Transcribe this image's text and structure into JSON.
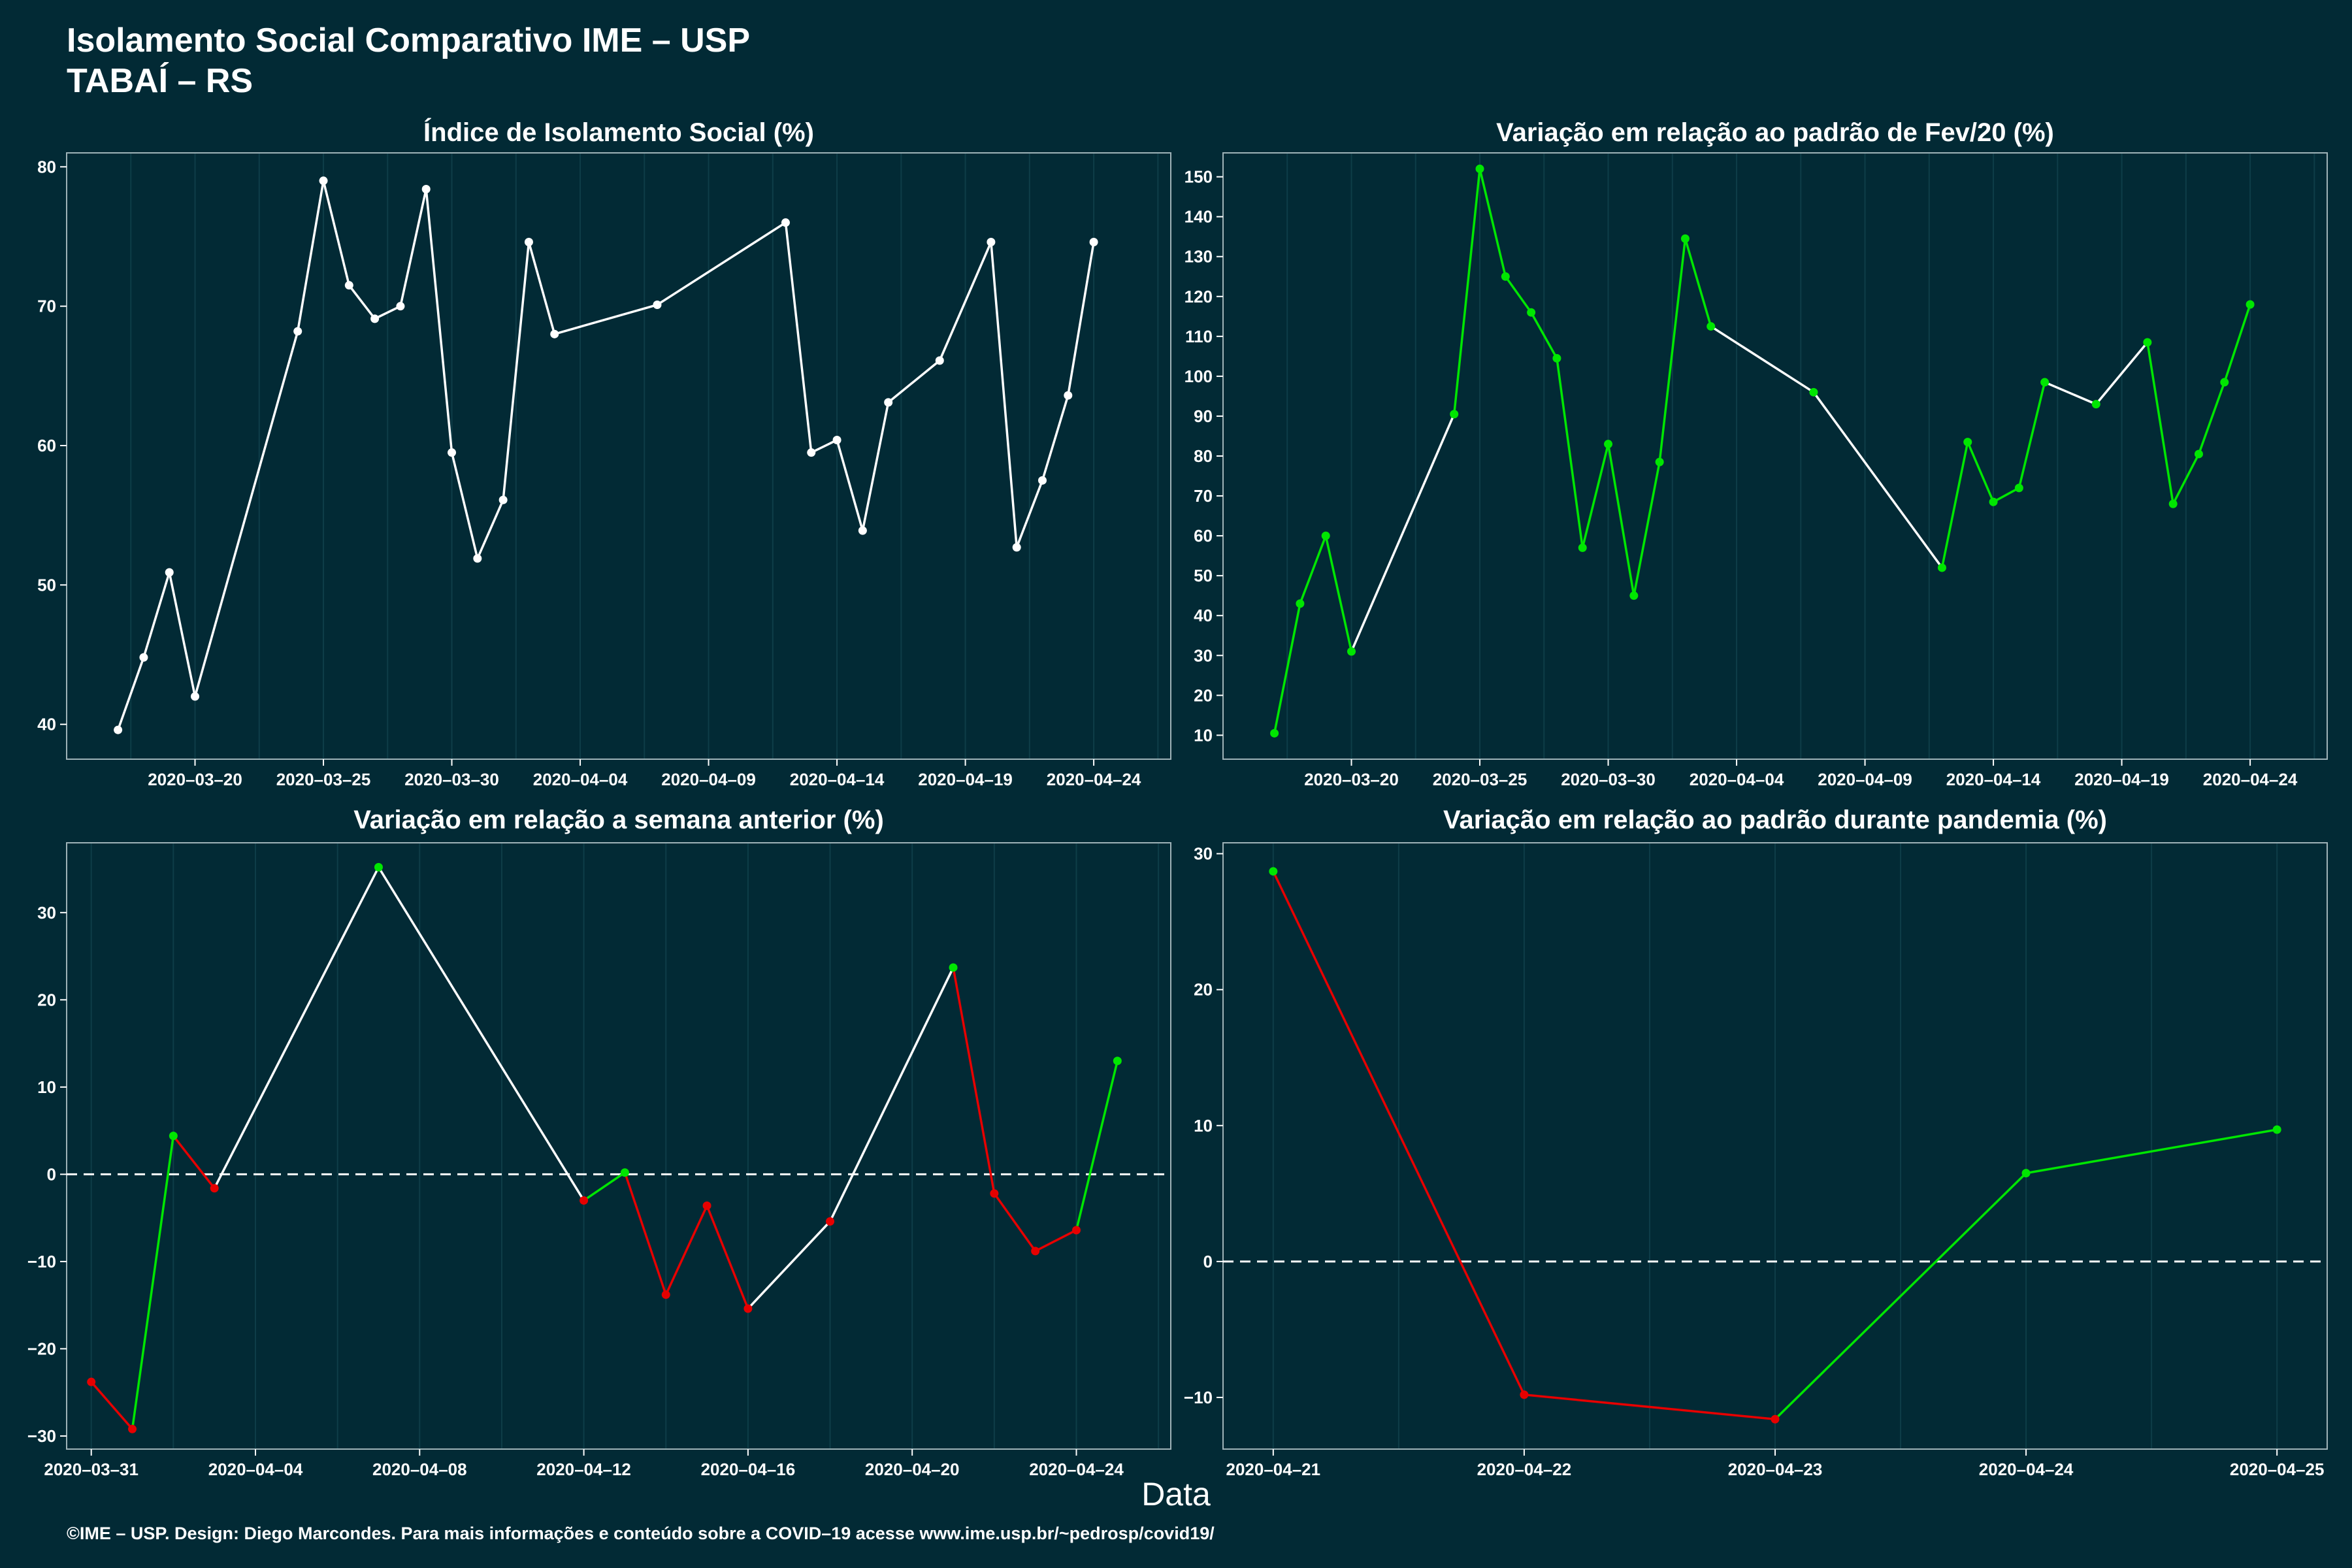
{
  "header": {
    "title_line1": "Isolamento Social Comparativo IME – USP",
    "title_line2": "TABAÍ – RS"
  },
  "x_axis_label": "Data",
  "footer": "©IME – USP. Design: Diego Marcondes. Para mais informações e conteúdo sobre a COVID–19 acesse www.ime.usp.br/~pedrosp/covid19/",
  "colors": {
    "background": "#022a35",
    "panel": "#022a35",
    "line_white": "#ffffff",
    "green": "#00e600",
    "red": "#e60000",
    "grid": "#0e3d48"
  },
  "chart_data": [
    {
      "type": "line",
      "title": "Índice de Isolamento Social (%)",
      "x_type": "date",
      "xlim": [
        "2020-03-15",
        "2020-04-27"
      ],
      "ylim": [
        37.5,
        81
      ],
      "x_ticks": [
        "2020-03-20",
        "2020-03-25",
        "2020-03-30",
        "2020-04-04",
        "2020-04-09",
        "2020-04-14",
        "2020-04-19",
        "2020-04-24"
      ],
      "y_ticks": [
        40,
        50,
        60,
        70,
        80
      ],
      "points": [
        {
          "x": "2020-03-17",
          "y": 39.6,
          "c": "white"
        },
        {
          "x": "2020-03-18",
          "y": 44.8,
          "c": "white"
        },
        {
          "x": "2020-03-19",
          "y": 50.9,
          "c": "white"
        },
        {
          "x": "2020-03-20",
          "y": 42.0,
          "c": "white"
        },
        {
          "x": "2020-03-24",
          "y": 68.2,
          "c": "white"
        },
        {
          "x": "2020-03-25",
          "y": 79.0,
          "c": "white"
        },
        {
          "x": "2020-03-26",
          "y": 71.5,
          "c": "white"
        },
        {
          "x": "2020-03-27",
          "y": 69.1,
          "c": "white"
        },
        {
          "x": "2020-03-28",
          "y": 70.0,
          "c": "white"
        },
        {
          "x": "2020-03-29",
          "y": 78.4,
          "c": "white"
        },
        {
          "x": "2020-03-30",
          "y": 59.5,
          "c": "white"
        },
        {
          "x": "2020-03-31",
          "y": 51.9,
          "c": "white"
        },
        {
          "x": "2020-04-01",
          "y": 56.1,
          "c": "white"
        },
        {
          "x": "2020-04-02",
          "y": 74.6,
          "c": "white"
        },
        {
          "x": "2020-04-03",
          "y": 68.0,
          "c": "white"
        },
        {
          "x": "2020-04-07",
          "y": 70.1,
          "c": "white"
        },
        {
          "x": "2020-04-12",
          "y": 76.0,
          "c": "white"
        },
        {
          "x": "2020-04-13",
          "y": 59.5,
          "c": "white"
        },
        {
          "x": "2020-04-14",
          "y": 60.4,
          "c": "white"
        },
        {
          "x": "2020-04-15",
          "y": 53.9,
          "c": "white"
        },
        {
          "x": "2020-04-16",
          "y": 63.1,
          "c": "white"
        },
        {
          "x": "2020-04-18",
          "y": 66.1,
          "c": "white"
        },
        {
          "x": "2020-04-20",
          "y": 74.6,
          "c": "white"
        },
        {
          "x": "2020-04-21",
          "y": 52.7,
          "c": "white"
        },
        {
          "x": "2020-04-22",
          "y": 57.5,
          "c": "white"
        },
        {
          "x": "2020-04-23",
          "y": 63.6,
          "c": "white"
        },
        {
          "x": "2020-04-24",
          "y": 74.6,
          "c": "white"
        }
      ],
      "segments": [
        "white",
        "white",
        "white",
        "white",
        "white",
        "white",
        "white",
        "white",
        "white",
        "white",
        "white",
        "white",
        "white",
        "white",
        "white",
        "white",
        "white",
        "white",
        "white",
        "white",
        "white",
        "white",
        "white",
        "white",
        "white",
        "white"
      ]
    },
    {
      "type": "line",
      "title": "Variação em relação ao padrão de Fev/20 (%)",
      "x_type": "date",
      "xlim": [
        "2020-03-15",
        "2020-04-27"
      ],
      "ylim": [
        4,
        156
      ],
      "x_ticks": [
        "2020-03-20",
        "2020-03-25",
        "2020-03-30",
        "2020-04-04",
        "2020-04-09",
        "2020-04-14",
        "2020-04-19",
        "2020-04-24"
      ],
      "y_ticks": [
        10,
        20,
        30,
        40,
        50,
        60,
        70,
        80,
        90,
        100,
        110,
        120,
        130,
        140,
        150
      ],
      "points": [
        {
          "x": "2020-03-17",
          "y": 10.5,
          "c": "green"
        },
        {
          "x": "2020-03-18",
          "y": 43.0,
          "c": "green"
        },
        {
          "x": "2020-03-19",
          "y": 60.0,
          "c": "green"
        },
        {
          "x": "2020-03-20",
          "y": 31.0,
          "c": "green"
        },
        {
          "x": "2020-03-24",
          "y": 90.5,
          "c": "green"
        },
        {
          "x": "2020-03-25",
          "y": 152.0,
          "c": "green"
        },
        {
          "x": "2020-03-26",
          "y": 125.0,
          "c": "green"
        },
        {
          "x": "2020-03-27",
          "y": 116.0,
          "c": "green"
        },
        {
          "x": "2020-03-28",
          "y": 104.5,
          "c": "green"
        },
        {
          "x": "2020-03-29",
          "y": 57.0,
          "c": "green"
        },
        {
          "x": "2020-03-30",
          "y": 83.0,
          "c": "green"
        },
        {
          "x": "2020-03-31",
          "y": 45.0,
          "c": "green"
        },
        {
          "x": "2020-04-01",
          "y": 78.5,
          "c": "green"
        },
        {
          "x": "2020-04-02",
          "y": 134.5,
          "c": "green"
        },
        {
          "x": "2020-04-03",
          "y": 112.5,
          "c": "green"
        },
        {
          "x": "2020-04-07",
          "y": 96.0,
          "c": "green"
        },
        {
          "x": "2020-04-12",
          "y": 52.0,
          "c": "green"
        },
        {
          "x": "2020-04-13",
          "y": 83.5,
          "c": "green"
        },
        {
          "x": "2020-04-14",
          "y": 68.5,
          "c": "green"
        },
        {
          "x": "2020-04-15",
          "y": 72.0,
          "c": "green"
        },
        {
          "x": "2020-04-16",
          "y": 98.5,
          "c": "green"
        },
        {
          "x": "2020-04-18",
          "y": 93.0,
          "c": "green"
        },
        {
          "x": "2020-04-20",
          "y": 108.5,
          "c": "green"
        },
        {
          "x": "2020-04-21",
          "y": 68.0,
          "c": "green"
        },
        {
          "x": "2020-04-22",
          "y": 80.5,
          "c": "green"
        },
        {
          "x": "2020-04-23",
          "y": 98.5,
          "c": "green"
        },
        {
          "x": "2020-04-24",
          "y": 118.0,
          "c": "green"
        }
      ],
      "segments": [
        "green",
        "green",
        "green",
        "white",
        "green",
        "green",
        "green",
        "green",
        "green",
        "green",
        "green",
        "green",
        "green",
        "green",
        "white",
        "white",
        "green",
        "green",
        "green",
        "green",
        "white",
        "white",
        "green",
        "green",
        "green",
        "green"
      ]
    },
    {
      "type": "line",
      "title": "Variação em relação a semana anterior (%)",
      "x_type": "date",
      "xlim": [
        "2020-03-30.4",
        "2020-04-26.3"
      ],
      "ylim": [
        -31.5,
        38
      ],
      "x_ticks": [
        "2020-03-31",
        "2020-04-04",
        "2020-04-08",
        "2020-04-12",
        "2020-04-16",
        "2020-04-20",
        "2020-04-24"
      ],
      "y_ticks": [
        -30,
        -20,
        -10,
        0,
        10,
        20,
        30
      ],
      "reference_line": 0,
      "points": [
        {
          "x": "2020-03-31",
          "y": -23.8,
          "c": "red"
        },
        {
          "x": "2020-04-01",
          "y": -29.2,
          "c": "red"
        },
        {
          "x": "2020-04-02",
          "y": 4.4,
          "c": "green"
        },
        {
          "x": "2020-04-03",
          "y": -1.6,
          "c": "red"
        },
        {
          "x": "2020-04-07",
          "y": 35.2,
          "c": "green"
        },
        {
          "x": "2020-04-12",
          "y": -3.0,
          "c": "red"
        },
        {
          "x": "2020-04-13",
          "y": 0.2,
          "c": "green"
        },
        {
          "x": "2020-04-14",
          "y": -13.8,
          "c": "red"
        },
        {
          "x": "2020-04-15",
          "y": -3.6,
          "c": "red"
        },
        {
          "x": "2020-04-16",
          "y": -15.4,
          "c": "red"
        },
        {
          "x": "2020-04-18",
          "y": -5.4,
          "c": "red"
        },
        {
          "x": "2020-04-21",
          "y": 23.7,
          "c": "green"
        },
        {
          "x": "2020-04-22",
          "y": -2.2,
          "c": "red"
        },
        {
          "x": "2020-04-23",
          "y": -8.8,
          "c": "red"
        },
        {
          "x": "2020-04-24",
          "y": -6.4,
          "c": "red"
        },
        {
          "x": "2020-04-25",
          "y": 13.0,
          "c": "green"
        }
      ],
      "segments": [
        "red",
        "green",
        "red",
        "white",
        "white",
        "green",
        "red",
        "red",
        "red",
        "white",
        "white",
        "red",
        "red",
        "red",
        "green"
      ]
    },
    {
      "type": "line",
      "title": "Variação em relação ao padrão durante pandemia (%)",
      "x_type": "date",
      "xlim": [
        "2020-04-20.8",
        "2020-04-25.2"
      ],
      "ylim": [
        -13.8,
        30.8
      ],
      "x_ticks": [
        "2020-04-21",
        "2020-04-22",
        "2020-04-23",
        "2020-04-24",
        "2020-04-25"
      ],
      "y_ticks": [
        -10,
        0,
        10,
        20,
        30
      ],
      "reference_line": 0,
      "points": [
        {
          "x": "2020-04-21",
          "y": 28.7,
          "c": "green"
        },
        {
          "x": "2020-04-22",
          "y": -9.8,
          "c": "red"
        },
        {
          "x": "2020-04-23",
          "y": -11.6,
          "c": "red"
        },
        {
          "x": "2020-04-24",
          "y": 6.5,
          "c": "green"
        },
        {
          "x": "2020-04-25",
          "y": 9.7,
          "c": "green"
        }
      ],
      "segments": [
        "red",
        "red",
        "green",
        "green"
      ]
    }
  ]
}
